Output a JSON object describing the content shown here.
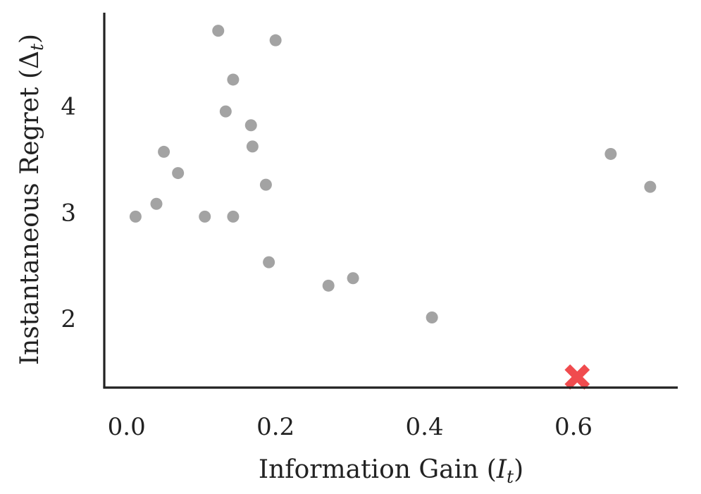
{
  "chart_data": {
    "type": "scatter",
    "xlabel": "Information Gain (",
    "xlabel_var": "I",
    "xlabel_sub": "t",
    "xlabel_close": ")",
    "ylabel": "Instantaneous Regret (",
    "ylabel_var": "Δ",
    "ylabel_sub": "t",
    "ylabel_close": ")",
    "xlim": [
      -0.03,
      0.74
    ],
    "ylim": [
      1.35,
      4.88
    ],
    "xticks": [
      {
        "value": 0.0,
        "label": "0.0"
      },
      {
        "value": 0.2,
        "label": "0.2"
      },
      {
        "value": 0.4,
        "label": "0.4"
      },
      {
        "value": 0.6,
        "label": "0.6"
      }
    ],
    "yticks": [
      {
        "value": 2,
        "label": "2"
      },
      {
        "value": 3,
        "label": "3"
      },
      {
        "value": 4,
        "label": "4"
      }
    ],
    "grid": false,
    "point_color": "#a3a3a3",
    "highlight_color": "#f04b4e",
    "points": [
      {
        "x": 0.123,
        "y": 4.71
      },
      {
        "x": 0.2,
        "y": 4.62
      },
      {
        "x": 0.143,
        "y": 4.25
      },
      {
        "x": 0.133,
        "y": 3.95
      },
      {
        "x": 0.167,
        "y": 3.82
      },
      {
        "x": 0.169,
        "y": 3.62
      },
      {
        "x": 0.05,
        "y": 3.57
      },
      {
        "x": 0.069,
        "y": 3.37
      },
      {
        "x": 0.187,
        "y": 3.26
      },
      {
        "x": 0.04,
        "y": 3.08
      },
      {
        "x": 0.012,
        "y": 2.96
      },
      {
        "x": 0.105,
        "y": 2.96
      },
      {
        "x": 0.143,
        "y": 2.96
      },
      {
        "x": 0.191,
        "y": 2.53
      },
      {
        "x": 0.271,
        "y": 2.31
      },
      {
        "x": 0.304,
        "y": 2.38
      },
      {
        "x": 0.41,
        "y": 2.01
      },
      {
        "x": 0.65,
        "y": 3.55
      },
      {
        "x": 0.703,
        "y": 3.24
      }
    ],
    "highlight": {
      "x": 0.605,
      "y": 1.45,
      "marker": "x"
    }
  }
}
